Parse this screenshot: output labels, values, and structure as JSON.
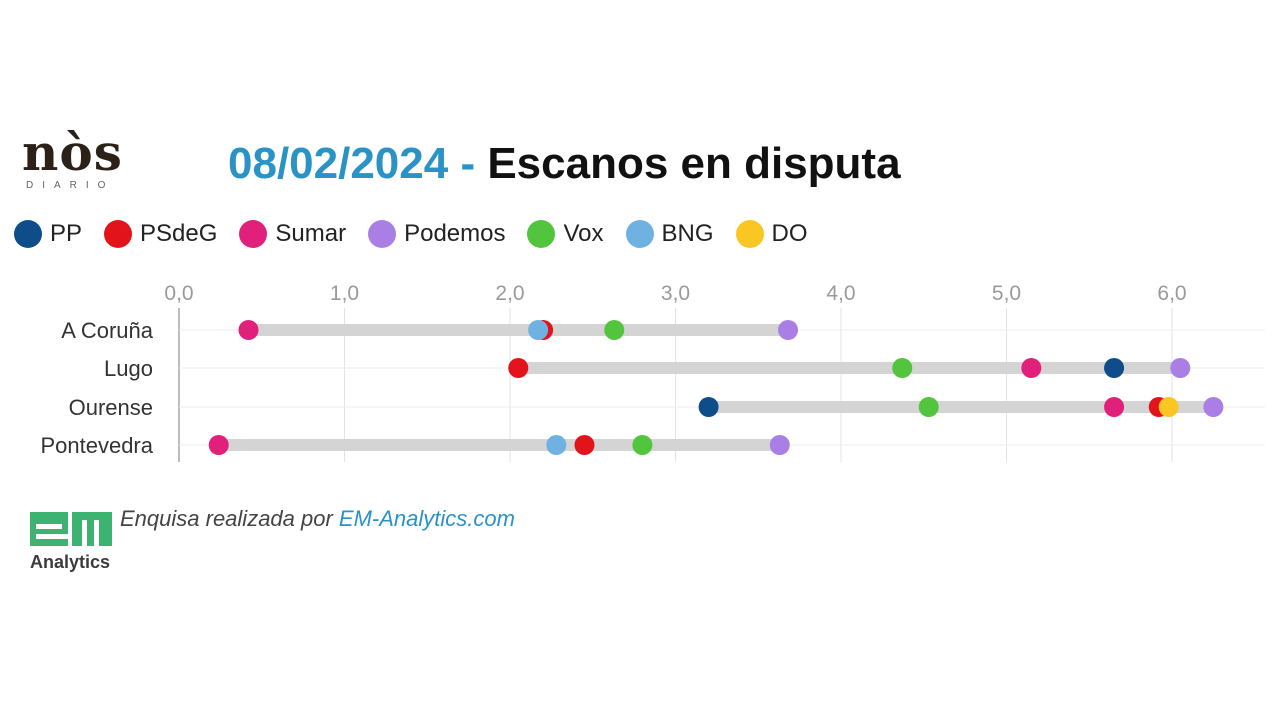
{
  "brand": {
    "logo_text": "nòs",
    "logo_sub": "DIARIO"
  },
  "header": {
    "date": "08/02/2024",
    "separator": " - ",
    "title": "Escanos en disputa"
  },
  "footer": {
    "note_prefix": "Enquisa realizada por ",
    "note_link": "EM-Analytics.com",
    "logo_mark": "em",
    "logo_text": "Analytics",
    "logo_color": "#3cb371"
  },
  "chart_data": {
    "type": "scatter",
    "x_ticks": [
      "0,0",
      "1,0",
      "2,0",
      "3,0",
      "4,0",
      "5,0",
      "6,0"
    ],
    "x_range": [
      0,
      6.5
    ],
    "grid": true,
    "legend_position": "top",
    "categories": [
      "A Coruña",
      "Lugo",
      "Ourense",
      "Pontevedra"
    ],
    "series": [
      {
        "name": "PP",
        "color": "#0f4c8a",
        "values": [
          null,
          5.65,
          3.2,
          null
        ]
      },
      {
        "name": "PSdeG",
        "color": "#e3131b",
        "values": [
          2.2,
          2.05,
          5.92,
          2.45
        ]
      },
      {
        "name": "Sumar",
        "color": "#e0207a",
        "values": [
          0.42,
          5.15,
          5.65,
          0.24
        ]
      },
      {
        "name": "Podemos",
        "color": "#a97fe6",
        "values": [
          3.68,
          6.05,
          6.25,
          3.63
        ]
      },
      {
        "name": "Vox",
        "color": "#52c43d",
        "values": [
          2.63,
          4.37,
          4.53,
          2.8
        ]
      },
      {
        "name": "BNG",
        "color": "#6fb2e2",
        "values": [
          2.17,
          null,
          null,
          2.28
        ]
      },
      {
        "name": "DO",
        "color": "#f9c623",
        "values": [
          null,
          null,
          5.98,
          null
        ]
      }
    ]
  }
}
